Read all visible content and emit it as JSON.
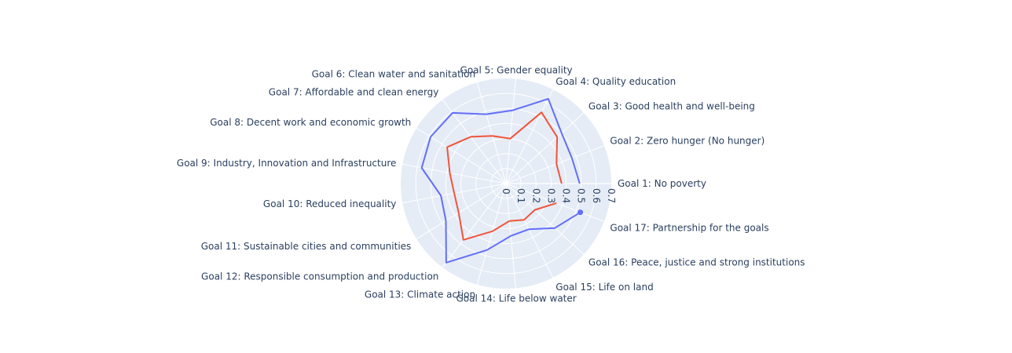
{
  "chart_data": {
    "type": "radar",
    "categories": [
      "Goal 1: No poverty",
      "Goal 2: Zero hunger (No hunger)",
      "Goal 3: Good health and well-being",
      "Goal 4: Quality education",
      "Goal 5: Gender equality",
      "Goal 6: Clean water and sanitation",
      "Goal 7: Affordable and clean energy",
      "Goal 8: Decent work and economic growth",
      "Goal 9: Industry, Innovation and Infrastructure",
      "Goal 10: Reduced inequality",
      "Goal 11: Sustainable cities and communities",
      "Goal 12: Responsible consumption and production",
      "Goal 13: Climate action",
      "Goal 14: Life below water",
      "Goal 15: Life on land",
      "Goal 16: Peace, justice and strong institutions",
      "Goal 17: Partnership for the goals"
    ],
    "series": [
      {
        "color": "#636efa",
        "values": [
          0.49,
          0.47,
          0.5,
          0.63,
          0.49,
          0.48,
          0.59,
          0.59,
          0.57,
          0.44,
          0.47,
          0.66,
          0.46,
          0.35,
          0.34,
          0.44,
          0.53
        ]
      },
      {
        "color": "#ef553b",
        "values": [
          0.37,
          0.36,
          0.46,
          0.53,
          0.3,
          0.33,
          0.39,
          0.46,
          0.38,
          0.35,
          0.37,
          0.47,
          0.33,
          0.25,
          0.27,
          0.26,
          0.36
        ]
      }
    ],
    "radial_ticks": [
      "0",
      "0.1",
      "0.2",
      "0.3",
      "0.4",
      "0.5",
      "0.6",
      "0.7"
    ],
    "radial_range": [
      0,
      0.7
    ],
    "grid": true,
    "legend": false,
    "marker_on_last_point": true
  },
  "colors": {
    "polar_background": "#e5ecf6",
    "grid_lines": "#ffffff",
    "text": "#2a3f5f"
  }
}
